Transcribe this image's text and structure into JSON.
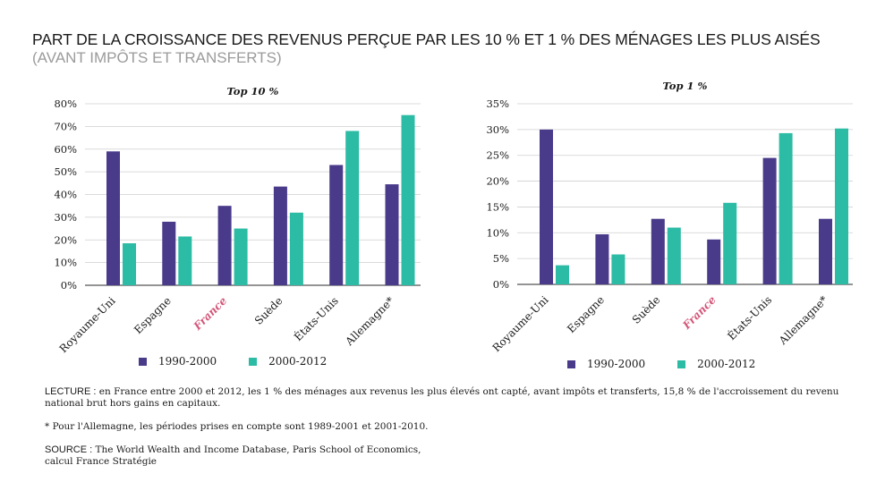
{
  "title": "PART DE LA CROISSANCE DES REVENUS PERÇUE PAR LES 10 % ET 1 % DES MÉNAGES LES PLUS AISÉS",
  "subtitle": "(AVANT IMPÔTS ET TRANSFERTS)",
  "colors": {
    "series1": "#4a3a8a",
    "series2": "#2cbba4",
    "highlight": "#d4577a",
    "grid": "#cfcfcf",
    "text": "#1a1a1a",
    "subtitle": "#9b9b9b"
  },
  "legend": {
    "series1": "1990-2000",
    "series2": "2000-2012"
  },
  "chart_data": [
    {
      "type": "bar",
      "title": "Top 10 %",
      "categories": [
        "Royaume-Uni",
        "Espagne",
        "France",
        "Suède",
        "États-Unis",
        "Allemagne*"
      ],
      "highlight_category": "France",
      "series": [
        {
          "name": "1990-2000",
          "values": [
            59,
            28,
            35,
            43.5,
            53,
            44.5
          ]
        },
        {
          "name": "2000-2012",
          "values": [
            18.5,
            21.5,
            25,
            32,
            68,
            75
          ]
        }
      ],
      "yticks": [
        "0%",
        "10%",
        "20%",
        "30%",
        "40%",
        "50%",
        "60%",
        "70%",
        "80%"
      ],
      "ylim": [
        0,
        80
      ],
      "ystep": 10,
      "xlabel": "",
      "ylabel": ""
    },
    {
      "type": "bar",
      "title": "Top 1 %",
      "categories": [
        "Royaume-Uni",
        "Espagne",
        "Suède",
        "France",
        "États-Unis",
        "Allemagne*"
      ],
      "highlight_category": "France",
      "series": [
        {
          "name": "1990-2000",
          "values": [
            30,
            9.7,
            12.7,
            8.7,
            24.5,
            12.7
          ]
        },
        {
          "name": "2000-2012",
          "values": [
            3.7,
            5.8,
            11,
            15.8,
            29.3,
            30.2
          ]
        }
      ],
      "yticks": [
        "0%",
        "5%",
        "10%",
        "15%",
        "20%",
        "25%",
        "30%",
        "35%"
      ],
      "ylim": [
        0,
        35
      ],
      "ystep": 5,
      "xlabel": "",
      "ylabel": ""
    }
  ],
  "notes": {
    "lecture_label": "LECTURE :",
    "lecture_text": " en France entre 2000 et 2012, les 1 % des ménages aux revenus les plus élevés ont capté, avant impôts et transferts, 15,8 % de l'accroissement du revenu national brut hors gains en capitaux.",
    "footnote": "* Pour l'Allemagne, les périodes prises en compte sont 1989-2001 et 2001-2010.",
    "source_label": "SOURCE :",
    "source_text": " The World Wealth and Income Database, Paris School of Economics,",
    "source_text2": "calcul France Stratégie"
  }
}
